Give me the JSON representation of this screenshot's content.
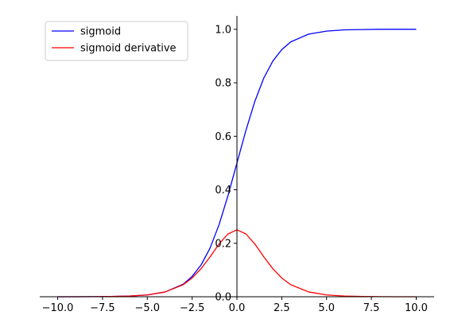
{
  "chart_data": {
    "type": "line",
    "title": "",
    "xlabel": "",
    "ylabel": "",
    "xlim": [
      -11,
      11
    ],
    "ylim": [
      0,
      1.05
    ],
    "x_ticks": [
      -10,
      -7.5,
      -5,
      -2.5,
      0,
      2.5,
      5,
      7.5,
      10
    ],
    "x_tick_labels": [
      "−10.0",
      "−7.5",
      "−5.0",
      "−2.5",
      "0.0",
      "2.5",
      "5.0",
      "7.5",
      "10.0"
    ],
    "y_ticks": [
      0,
      0.2,
      0.4,
      0.6,
      0.8,
      1.0
    ],
    "y_tick_labels": [
      "0.0",
      "0.2",
      "0.4",
      "0.6",
      "0.8",
      "1.0"
    ],
    "grid": false,
    "legend_position": "top-left",
    "spines": "centered at origin (left spine at x=0, bottom spine at y=0)",
    "x": [
      -10,
      -9,
      -8,
      -7,
      -6,
      -5,
      -4,
      -3,
      -2.5,
      -2,
      -1.5,
      -1,
      -0.5,
      0,
      0.5,
      1,
      1.5,
      2,
      2.5,
      3,
      4,
      5,
      6,
      7,
      8,
      9,
      10
    ],
    "series": [
      {
        "name": "sigmoid",
        "color": "#0000ff",
        "values": [
          0.0,
          0.0001,
          0.0003,
          0.0009,
          0.0025,
          0.0067,
          0.018,
          0.047,
          0.076,
          0.119,
          0.182,
          0.269,
          0.378,
          0.5,
          0.622,
          0.731,
          0.818,
          0.881,
          0.924,
          0.953,
          0.982,
          0.993,
          0.998,
          0.999,
          1.0,
          1.0,
          1.0
        ]
      },
      {
        "name": "sigmoid derivative",
        "color": "#ff0000",
        "values": [
          0.0,
          0.0001,
          0.0003,
          0.0009,
          0.0025,
          0.0066,
          0.018,
          0.045,
          0.07,
          0.105,
          0.149,
          0.197,
          0.235,
          0.25,
          0.235,
          0.197,
          0.149,
          0.105,
          0.07,
          0.045,
          0.018,
          0.0066,
          0.0025,
          0.0009,
          0.0003,
          0.0001,
          0.0
        ]
      }
    ]
  }
}
